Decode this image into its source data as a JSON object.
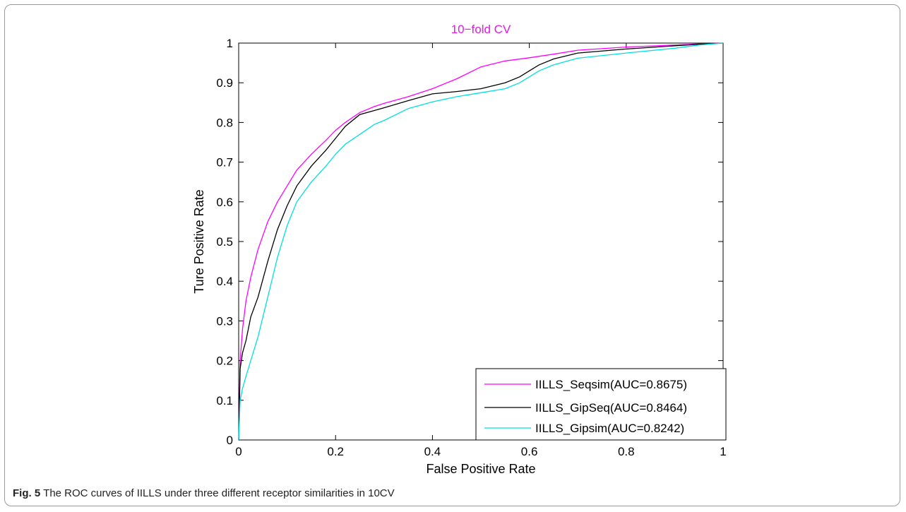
{
  "caption": {
    "label": "Fig. 5",
    "text": "The ROC curves of IILLS under three different receptor similarities in 10CV"
  },
  "chart_data": {
    "type": "line",
    "title": "10−fold CV",
    "title_color": "#e619e6",
    "xlabel": "False Positive Rate",
    "ylabel": "Ture Positive Rate",
    "xlim": [
      0,
      1
    ],
    "ylim": [
      0,
      1
    ],
    "xticks": [
      0,
      0.2,
      0.4,
      0.6,
      0.8,
      1
    ],
    "xtick_labels": [
      "0",
      "0.2",
      "0.4",
      "0.6",
      "0.8",
      "1"
    ],
    "yticks": [
      0,
      0.1,
      0.2,
      0.3,
      0.4,
      0.5,
      0.6,
      0.7,
      0.8,
      0.9,
      1
    ],
    "ytick_labels": [
      "0",
      "0.1",
      "0.2",
      "0.3",
      "0.4",
      "0.5",
      "0.6",
      "0.7",
      "0.8",
      "0.9",
      "1"
    ],
    "grid": false,
    "legend_position": "bottom-right",
    "series": [
      {
        "name": "IILLS_Seqsim(AUC=0.8675)",
        "color": "#ff00ff",
        "x": [
          0,
          0.003,
          0.008,
          0.015,
          0.025,
          0.04,
          0.06,
          0.08,
          0.1,
          0.12,
          0.15,
          0.18,
          0.2,
          0.22,
          0.25,
          0.28,
          0.3,
          0.35,
          0.4,
          0.45,
          0.5,
          0.55,
          0.6,
          0.65,
          0.7,
          0.8,
          0.9,
          0.95,
          1
        ],
        "y": [
          0,
          0.2,
          0.28,
          0.35,
          0.41,
          0.48,
          0.55,
          0.6,
          0.64,
          0.68,
          0.72,
          0.755,
          0.78,
          0.8,
          0.825,
          0.84,
          0.848,
          0.865,
          0.885,
          0.91,
          0.94,
          0.955,
          0.963,
          0.972,
          0.982,
          0.99,
          0.995,
          0.998,
          1
        ]
      },
      {
        "name": "IILLS_GipSeq(AUC=0.8464)",
        "color": "#000000",
        "x": [
          0,
          0.003,
          0.008,
          0.015,
          0.025,
          0.04,
          0.06,
          0.08,
          0.1,
          0.12,
          0.15,
          0.18,
          0.2,
          0.22,
          0.25,
          0.28,
          0.3,
          0.35,
          0.4,
          0.45,
          0.5,
          0.55,
          0.58,
          0.6,
          0.62,
          0.65,
          0.7,
          0.8,
          0.9,
          0.95,
          1
        ],
        "y": [
          0,
          0.18,
          0.22,
          0.25,
          0.31,
          0.36,
          0.45,
          0.53,
          0.59,
          0.64,
          0.69,
          0.73,
          0.76,
          0.79,
          0.82,
          0.83,
          0.837,
          0.855,
          0.872,
          0.878,
          0.885,
          0.9,
          0.915,
          0.93,
          0.945,
          0.96,
          0.975,
          0.985,
          0.993,
          0.997,
          1
        ]
      },
      {
        "name": "IILLS_Gipsim(AUC=0.8242)",
        "color": "#00e0e0",
        "x": [
          0,
          0.003,
          0.008,
          0.015,
          0.025,
          0.04,
          0.06,
          0.08,
          0.1,
          0.12,
          0.15,
          0.18,
          0.2,
          0.22,
          0.25,
          0.28,
          0.3,
          0.35,
          0.4,
          0.45,
          0.5,
          0.55,
          0.58,
          0.6,
          0.62,
          0.65,
          0.7,
          0.8,
          0.9,
          0.95,
          1
        ],
        "y": [
          0,
          0.1,
          0.13,
          0.16,
          0.2,
          0.26,
          0.36,
          0.46,
          0.54,
          0.6,
          0.65,
          0.69,
          0.72,
          0.745,
          0.77,
          0.795,
          0.805,
          0.835,
          0.852,
          0.865,
          0.875,
          0.885,
          0.9,
          0.915,
          0.93,
          0.945,
          0.962,
          0.975,
          0.987,
          0.995,
          1
        ]
      }
    ]
  }
}
